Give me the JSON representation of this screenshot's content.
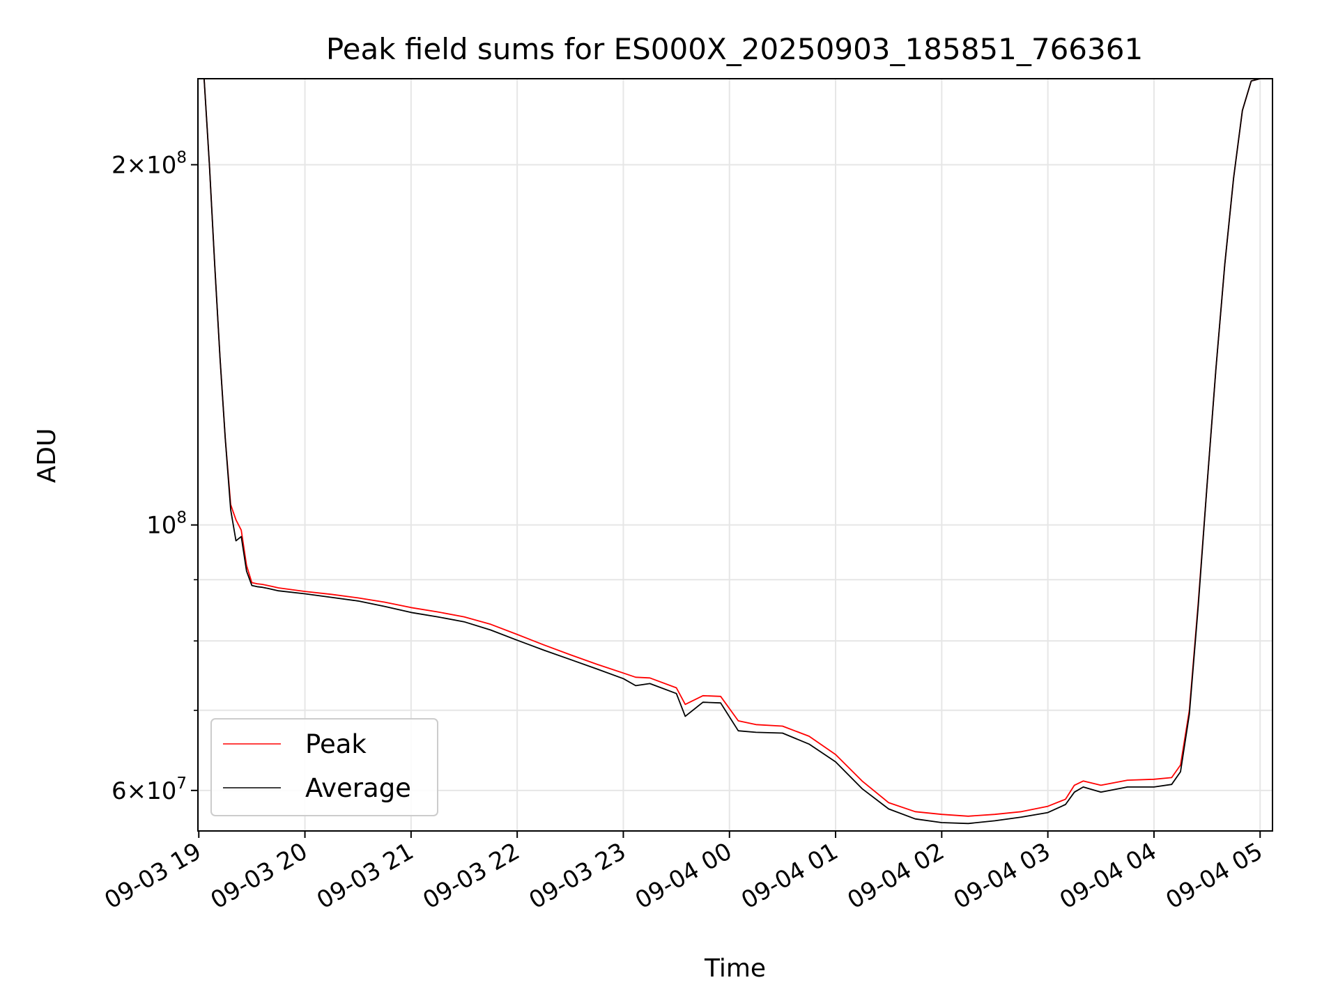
{
  "chart_data": {
    "type": "line",
    "title": "Peak field sums for ES000X_20250903_185851_766361",
    "xlabel": "Time",
    "ylabel": "ADU",
    "yscale": "log",
    "grid": true,
    "legend_position": "lower-left",
    "xlim": [
      "2025-09-03 18:59:30",
      "2025-09-04 05:07:00"
    ],
    "ylim": [
      55500000,
      236000000
    ],
    "x_ticks": [
      "2025-09-03 19:00",
      "2025-09-03 20:00",
      "2025-09-03 21:00",
      "2025-09-03 22:00",
      "2025-09-03 23:00",
      "2025-09-04 00:00",
      "2025-09-04 01:00",
      "2025-09-04 02:00",
      "2025-09-04 03:00",
      "2025-09-04 04:00",
      "2025-09-04 05:00"
    ],
    "x_tick_labels": [
      "09-03 19",
      "09-03 20",
      "09-03 21",
      "09-03 22",
      "09-03 23",
      "09-04 00",
      "09-04 01",
      "09-04 02",
      "09-04 03",
      "09-04 04",
      "09-04 05"
    ],
    "y_major_ticks": [
      {
        "value": 60000000,
        "mantissa": "6",
        "base": "10",
        "exp": "7"
      },
      {
        "value": 100000000,
        "mantissa": "",
        "base": "10",
        "exp": "8"
      },
      {
        "value": 200000000,
        "mantissa": "2",
        "base": "10",
        "exp": "8"
      }
    ],
    "y_minor_ticks": [
      70000000,
      80000000,
      90000000
    ],
    "series": [
      {
        "name": "Peak",
        "color": "#ff0000",
        "x": [
          "2025-09-03 19:03",
          "2025-09-03 19:06",
          "2025-09-03 19:09",
          "2025-09-03 19:12",
          "2025-09-03 19:15",
          "2025-09-03 19:18",
          "2025-09-03 19:21",
          "2025-09-03 19:24",
          "2025-09-03 19:27",
          "2025-09-03 19:30",
          "2025-09-03 19:33",
          "2025-09-03 19:36",
          "2025-09-03 19:39",
          "2025-09-03 19:42",
          "2025-09-03 19:45",
          "2025-09-03 20:00",
          "2025-09-03 20:15",
          "2025-09-03 20:30",
          "2025-09-03 20:45",
          "2025-09-03 21:00",
          "2025-09-03 21:15",
          "2025-09-03 21:30",
          "2025-09-03 21:45",
          "2025-09-03 22:00",
          "2025-09-03 22:15",
          "2025-09-03 22:30",
          "2025-09-03 22:45",
          "2025-09-03 23:00",
          "2025-09-03 23:07",
          "2025-09-03 23:15",
          "2025-09-03 23:30",
          "2025-09-03 23:35",
          "2025-09-03 23:45",
          "2025-09-03 23:55",
          "2025-09-04 00:05",
          "2025-09-04 00:15",
          "2025-09-04 00:30",
          "2025-09-04 00:45",
          "2025-09-04 01:00",
          "2025-09-04 01:15",
          "2025-09-04 01:30",
          "2025-09-04 01:45",
          "2025-09-04 02:00",
          "2025-09-04 02:15",
          "2025-09-04 02:30",
          "2025-09-04 02:45",
          "2025-09-04 03:00",
          "2025-09-04 03:10",
          "2025-09-04 03:15",
          "2025-09-04 03:20",
          "2025-09-04 03:30",
          "2025-09-04 03:45",
          "2025-09-04 04:00",
          "2025-09-04 04:10",
          "2025-09-04 04:15",
          "2025-09-04 04:20",
          "2025-09-04 04:25",
          "2025-09-04 04:30",
          "2025-09-04 04:35",
          "2025-09-04 04:40",
          "2025-09-04 04:45",
          "2025-09-04 04:50",
          "2025-09-04 04:55",
          "2025-09-04 05:00"
        ],
        "y": [
          236000000,
          200000000,
          165000000,
          138000000,
          118000000,
          104000000,
          101000000,
          99000000,
          92500000,
          89500000,
          89300000,
          89200000,
          89000000,
          88800000,
          88600000,
          88000000,
          87500000,
          86900000,
          86200000,
          85300000,
          84600000,
          83800000,
          82600000,
          81000000,
          79400000,
          77900000,
          76500000,
          75200000,
          74600000,
          74500000,
          73100000,
          70800000,
          72000000,
          71900000,
          68600000,
          68100000,
          67900000,
          66600000,
          64300000,
          61100000,
          58600000,
          57600000,
          57300000,
          57100000,
          57300000,
          57600000,
          58200000,
          59000000,
          60600000,
          61100000,
          60600000,
          61200000,
          61300000,
          61500000,
          63000000,
          70000000,
          86000000,
          108000000,
          135000000,
          165000000,
          195000000,
          222000000,
          235000000,
          236000000
        ]
      },
      {
        "name": "Average",
        "color": "#000000",
        "x": [
          "2025-09-03 19:03",
          "2025-09-03 19:06",
          "2025-09-03 19:09",
          "2025-09-03 19:12",
          "2025-09-03 19:15",
          "2025-09-03 19:18",
          "2025-09-03 19:21",
          "2025-09-03 19:24",
          "2025-09-03 19:27",
          "2025-09-03 19:30",
          "2025-09-03 19:33",
          "2025-09-03 19:36",
          "2025-09-03 19:39",
          "2025-09-03 19:42",
          "2025-09-03 19:45",
          "2025-09-03 20:00",
          "2025-09-03 20:15",
          "2025-09-03 20:30",
          "2025-09-03 20:45",
          "2025-09-03 21:00",
          "2025-09-03 21:15",
          "2025-09-03 21:30",
          "2025-09-03 21:45",
          "2025-09-03 22:00",
          "2025-09-03 22:15",
          "2025-09-03 22:30",
          "2025-09-03 22:45",
          "2025-09-03 23:00",
          "2025-09-03 23:07",
          "2025-09-03 23:15",
          "2025-09-03 23:30",
          "2025-09-03 23:35",
          "2025-09-03 23:45",
          "2025-09-03 23:55",
          "2025-09-04 00:05",
          "2025-09-04 00:15",
          "2025-09-04 00:30",
          "2025-09-04 00:45",
          "2025-09-04 01:00",
          "2025-09-04 01:15",
          "2025-09-04 01:30",
          "2025-09-04 01:45",
          "2025-09-04 02:00",
          "2025-09-04 02:15",
          "2025-09-04 02:30",
          "2025-09-04 02:45",
          "2025-09-04 03:00",
          "2025-09-04 03:10",
          "2025-09-04 03:15",
          "2025-09-04 03:20",
          "2025-09-04 03:30",
          "2025-09-04 03:45",
          "2025-09-04 04:00",
          "2025-09-04 04:10",
          "2025-09-04 04:15",
          "2025-09-04 04:20",
          "2025-09-04 04:25",
          "2025-09-04 04:30",
          "2025-09-04 04:35",
          "2025-09-04 04:40",
          "2025-09-04 04:45",
          "2025-09-04 04:50",
          "2025-09-04 04:55",
          "2025-09-04 05:00"
        ],
        "y": [
          236000000,
          200000000,
          165000000,
          138000000,
          118000000,
          103000000,
          97000000,
          97800000,
          91500000,
          89000000,
          88800000,
          88700000,
          88500000,
          88300000,
          88100000,
          87600000,
          87000000,
          86400000,
          85500000,
          84500000,
          83800000,
          83000000,
          81700000,
          80100000,
          78600000,
          77200000,
          75800000,
          74400000,
          73400000,
          73700000,
          72300000,
          69200000,
          71100000,
          71000000,
          67300000,
          67100000,
          67000000,
          65600000,
          63400000,
          60200000,
          57900000,
          56800000,
          56400000,
          56300000,
          56600000,
          57000000,
          57500000,
          58400000,
          59800000,
          60400000,
          59800000,
          60400000,
          60400000,
          60700000,
          62200000,
          69500000,
          85500000,
          108000000,
          135000000,
          165000000,
          195000000,
          222000000,
          235000000,
          236000000
        ]
      }
    ]
  }
}
